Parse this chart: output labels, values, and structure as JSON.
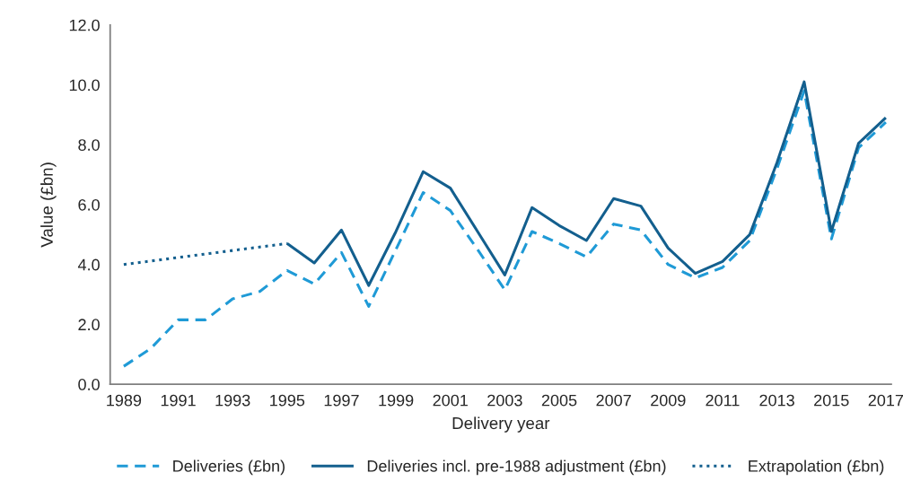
{
  "chart_data": {
    "type": "line",
    "xlabel": "Delivery year",
    "ylabel": "Value (£bn)",
    "xlim": [
      1988.5,
      2017.2
    ],
    "xticks": [
      1989,
      1991,
      1993,
      1995,
      1997,
      1999,
      2001,
      2003,
      2005,
      2007,
      2009,
      2011,
      2013,
      2015,
      2017
    ],
    "ylim": [
      0,
      12
    ],
    "yticks": [
      {
        "value": 0,
        "label": "0.0"
      },
      {
        "value": 2,
        "label": "2.0"
      },
      {
        "value": 4,
        "label": "4.0"
      },
      {
        "value": 6,
        "label": "6.0"
      },
      {
        "value": 8,
        "label": "8.0"
      },
      {
        "value": 10,
        "label": "10.0"
      },
      {
        "value": 12,
        "label": "12.0"
      }
    ],
    "grid": false,
    "legend": "bottom",
    "marker": "none",
    "series": [
      {
        "name": "Deliveries (£bn)",
        "color": "#1f9ad6",
        "line_style": "dashed",
        "x": [
          1989,
          1990,
          1991,
          1992,
          1993,
          1994,
          1995,
          1996,
          1997,
          1998,
          1999,
          2000,
          2001,
          2002,
          2003,
          2004,
          2005,
          2006,
          2007,
          2008,
          2009,
          2010,
          2011,
          2012,
          2013,
          2014,
          2015,
          2016,
          2017
        ],
        "values": [
          0.6,
          1.2,
          2.15,
          2.15,
          2.85,
          3.1,
          3.8,
          3.35,
          4.4,
          2.6,
          4.5,
          6.4,
          5.8,
          4.5,
          3.15,
          5.1,
          4.7,
          4.25,
          5.35,
          5.15,
          4.0,
          3.55,
          3.9,
          4.8,
          7.2,
          9.8,
          4.85,
          7.9,
          8.75
        ]
      },
      {
        "name": "Deliveries incl. pre-1988 adjustment (£bn)",
        "color": "#135f8e",
        "line_style": "solid",
        "x": [
          1995,
          1996,
          1997,
          1998,
          1999,
          2000,
          2001,
          2002,
          2003,
          2004,
          2005,
          2006,
          2007,
          2008,
          2009,
          2010,
          2011,
          2012,
          2013,
          2014,
          2015,
          2016,
          2017
        ],
        "values": [
          4.7,
          4.05,
          5.15,
          3.3,
          5.1,
          7.1,
          6.55,
          5.1,
          3.65,
          5.9,
          5.3,
          4.8,
          6.2,
          5.95,
          4.55,
          3.7,
          4.1,
          5.0,
          7.4,
          10.1,
          5.1,
          8.05,
          8.9
        ]
      },
      {
        "name": "Extrapolation (£bn)",
        "color": "#135f8e",
        "line_style": "dotted",
        "x": [
          1989,
          1995
        ],
        "values": [
          4.0,
          4.7
        ]
      }
    ]
  }
}
